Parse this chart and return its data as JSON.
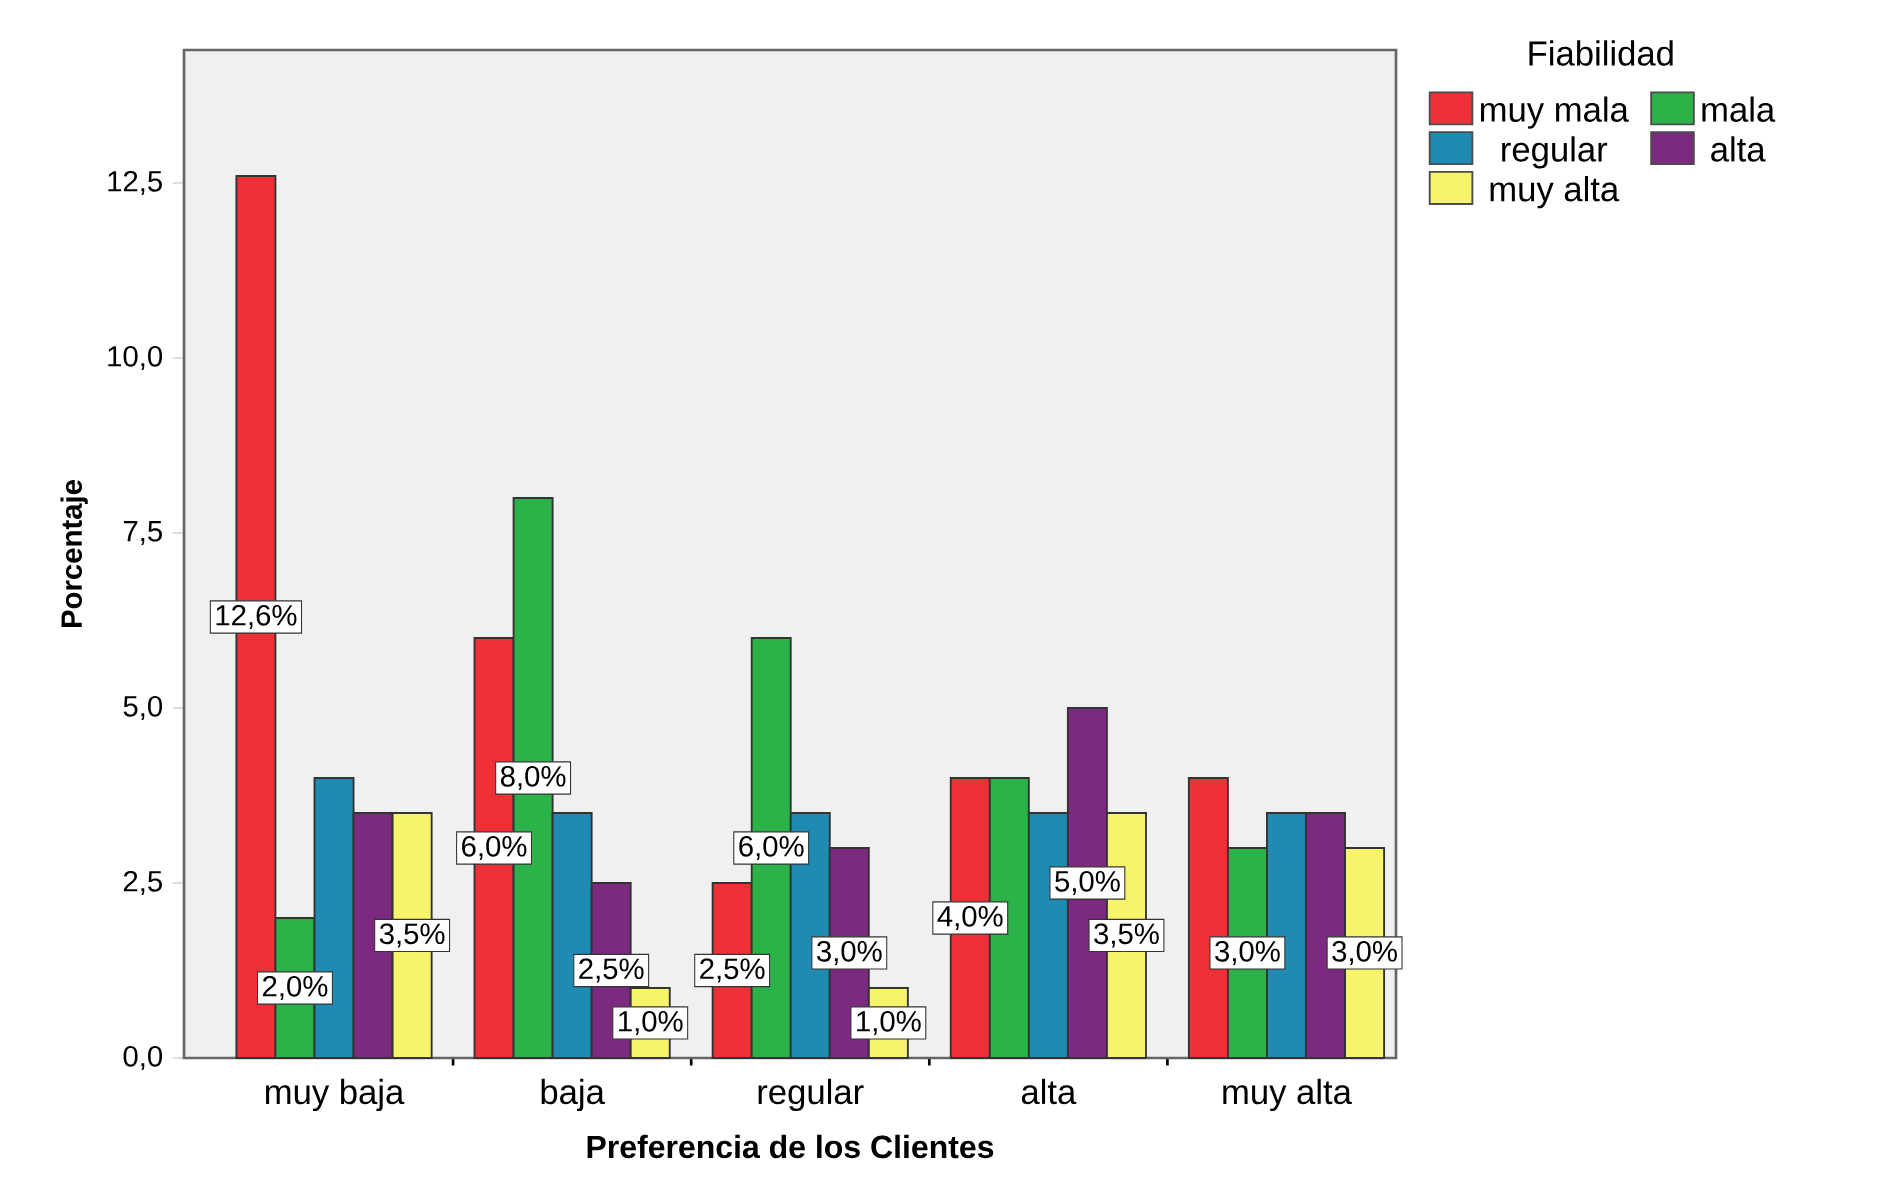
{
  "chart_data": {
    "type": "bar",
    "xlabel": "Preferencia de los Clientes",
    "ylabel": "Porcentaje",
    "legend_title": "Fiabilidad",
    "categories": [
      "muy baja",
      "baja",
      "regular",
      "alta",
      "muy alta"
    ],
    "series": [
      {
        "name": "muy mala",
        "color": "#ee3136",
        "values": [
          12.6,
          6.0,
          2.5,
          4.0,
          4.0
        ],
        "value_labels": [
          "12,6%",
          "6,0%",
          "2,5%",
          "4,0%",
          null
        ]
      },
      {
        "name": "mala",
        "color": "#2bb34a",
        "values": [
          2.0,
          8.0,
          6.0,
          4.0,
          3.0
        ],
        "value_labels": [
          "2,0%",
          "8,0%",
          "6,0%",
          null,
          "3,0%"
        ]
      },
      {
        "name": "regular",
        "color": "#1f8bb3",
        "values": [
          4.0,
          3.5,
          3.5,
          3.5,
          3.5
        ],
        "value_labels": [
          null,
          null,
          null,
          null,
          null
        ]
      },
      {
        "name": "alta",
        "color": "#7b2a7f",
        "values": [
          3.5,
          2.5,
          3.0,
          5.0,
          3.5
        ],
        "value_labels": [
          null,
          "2,5%",
          "3,0%",
          "5,0%",
          null
        ]
      },
      {
        "name": "muy alta",
        "color": "#f7f36a",
        "values": [
          3.5,
          1.0,
          1.0,
          3.5,
          3.0
        ],
        "value_labels": [
          "3,5%",
          "1,0%",
          "1,0%",
          "3,5%",
          "3,0%"
        ]
      }
    ],
    "ylim": [
      0,
      14.4
    ],
    "yticks": [
      {
        "value": 0,
        "label": "0,0"
      },
      {
        "value": 2.5,
        "label": "2,5"
      },
      {
        "value": 5,
        "label": "5,0"
      },
      {
        "value": 7.5,
        "label": "7,5"
      },
      {
        "value": 10,
        "label": "10,0"
      },
      {
        "value": 12.5,
        "label": "12,5"
      }
    ],
    "grid": false,
    "legend": "top right"
  }
}
